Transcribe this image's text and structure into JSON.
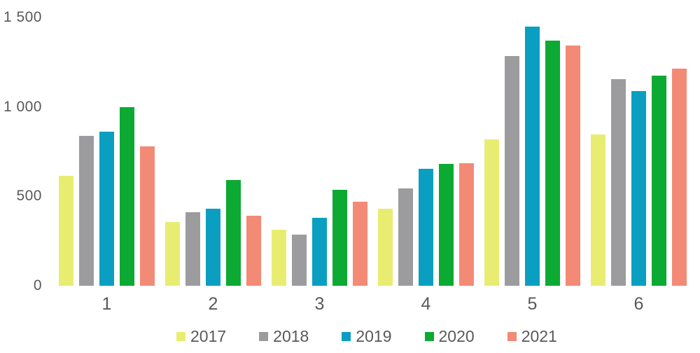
{
  "chart_data": {
    "type": "bar",
    "title": "",
    "xlabel": "",
    "ylabel": "",
    "categories": [
      "1",
      "2",
      "3",
      "4",
      "5",
      "6"
    ],
    "series": [
      {
        "name": "2017",
        "color": "#e8ed71",
        "values": [
          615,
          355,
          315,
          430,
          820,
          845
        ]
      },
      {
        "name": "2018",
        "color": "#9c9c9e",
        "values": [
          840,
          410,
          285,
          545,
          1285,
          1155
        ]
      },
      {
        "name": "2019",
        "color": "#0a9fc1",
        "values": [
          860,
          430,
          380,
          655,
          1450,
          1090
        ]
      },
      {
        "name": "2020",
        "color": "#0caa33",
        "values": [
          1000,
          590,
          535,
          680,
          1370,
          1175
        ]
      },
      {
        "name": "2021",
        "color": "#f38a76",
        "values": [
          780,
          390,
          470,
          685,
          1345,
          1215
        ]
      }
    ],
    "ylim": [
      0,
      1500
    ],
    "yticks": [
      0,
      500,
      1000,
      1500
    ],
    "ytick_labels": [
      "0",
      "500",
      "1 000",
      "1 500"
    ],
    "grid": false,
    "legend_position": "bottom",
    "axis_text_color": "#58595b",
    "background_color": "#ffffff"
  }
}
